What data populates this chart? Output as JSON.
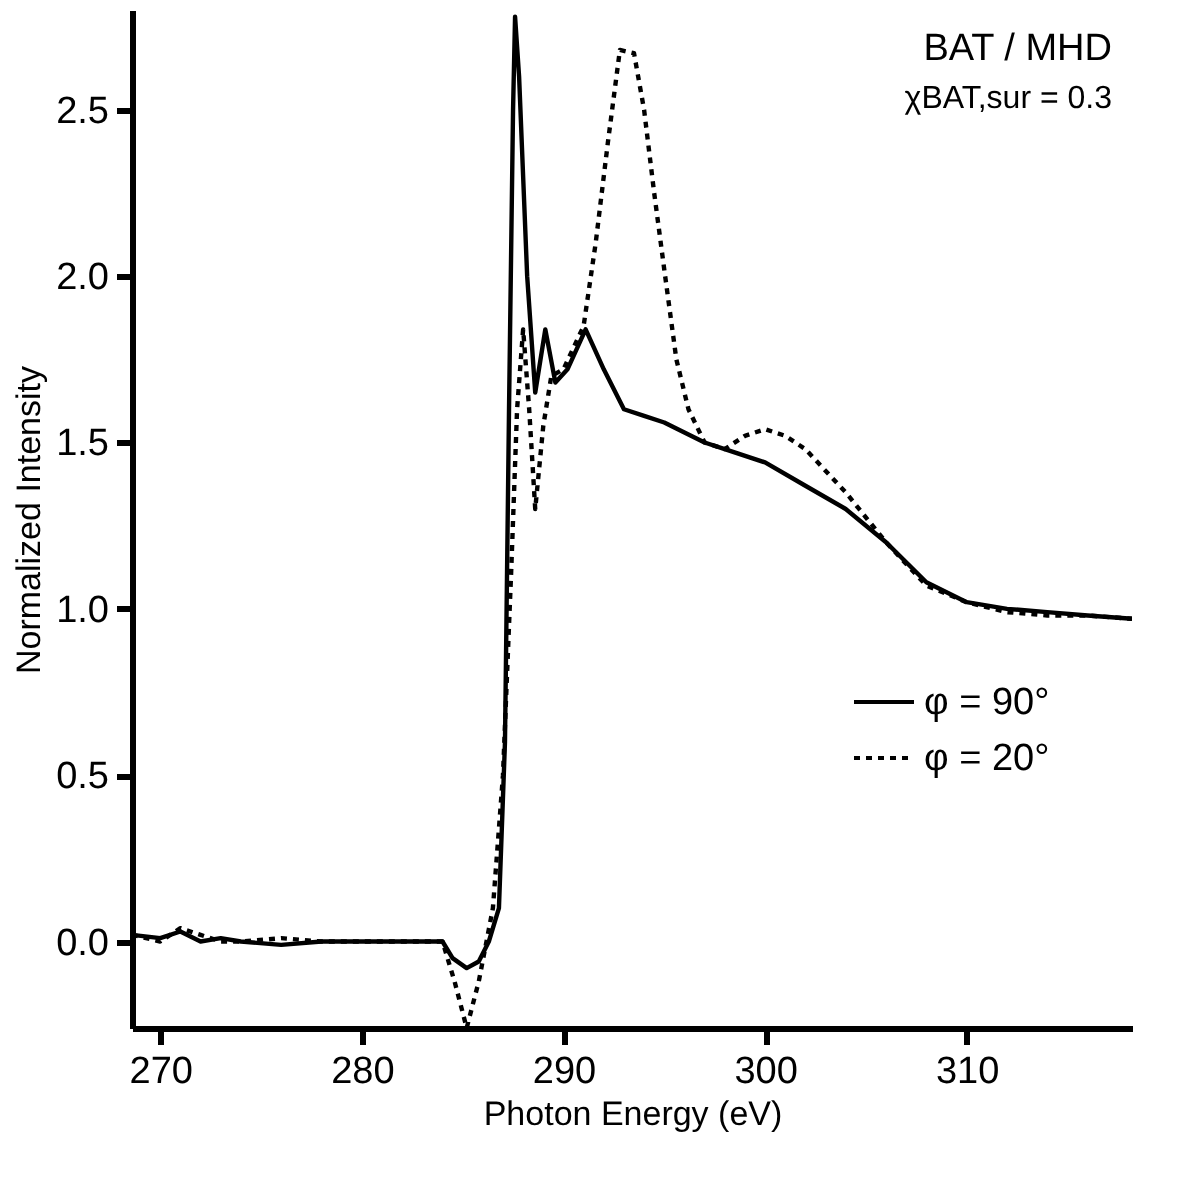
{
  "chart_data": {
    "type": "line",
    "xlabel": "Photon Energy (eV)",
    "ylabel": "Normalized Intensity",
    "annotations": [
      "BAT / MHD",
      "χBAT,sur = 0.3"
    ],
    "xlim": [
      268.6,
      318.2
    ],
    "xticks": [
      270,
      280,
      290,
      300,
      310
    ],
    "ylim": [
      -0.26,
      2.8
    ],
    "yticks": [
      {
        "value": 0,
        "label": "0.0"
      },
      {
        "value": 0.5,
        "label": "0.5"
      },
      {
        "value": 1,
        "label": "1.0"
      },
      {
        "value": 1.5,
        "label": "1.5"
      },
      {
        "value": 2,
        "label": "2.0"
      },
      {
        "value": 2.5,
        "label": "2.5"
      }
    ],
    "grid": false,
    "legend": "right",
    "marker": "none",
    "series": [
      {
        "name": "φ = 90°",
        "color": "#000000",
        "line_style": "solid",
        "x": [
          268.6,
          270,
          271,
          272,
          273,
          274,
          276,
          278,
          280,
          282,
          284,
          284.5,
          285.2,
          285.8,
          286.3,
          286.8,
          287.1,
          287.3,
          287.5,
          287.6,
          287.8,
          288.2,
          288.6,
          289.1,
          289.6,
          290.2,
          291.1,
          292,
          293,
          294,
          295,
          296,
          297,
          298,
          300,
          302,
          304,
          306,
          308,
          310,
          312,
          314,
          316,
          318.2
        ],
        "values": [
          0.02,
          0.01,
          0.03,
          0.0,
          0.01,
          0.0,
          -0.01,
          0.0,
          0.0,
          0.0,
          0.0,
          -0.05,
          -0.08,
          -0.06,
          0.0,
          0.1,
          0.6,
          1.6,
          2.5,
          2.78,
          2.6,
          2.0,
          1.65,
          1.84,
          1.68,
          1.72,
          1.84,
          1.72,
          1.6,
          1.58,
          1.56,
          1.53,
          1.5,
          1.48,
          1.44,
          1.37,
          1.3,
          1.2,
          1.08,
          1.02,
          1.0,
          0.99,
          0.98,
          0.97
        ]
      },
      {
        "name": "φ = 20°",
        "color": "#000000",
        "line_style": "dotted",
        "x": [
          268.6,
          270,
          271,
          272,
          273,
          274,
          276,
          278,
          280,
          282,
          284,
          284.6,
          285.2,
          285.8,
          286.5,
          287,
          287.4,
          287.7,
          288.0,
          288.3,
          288.6,
          289.0,
          289.4,
          290,
          291,
          291.6,
          292.2,
          292.8,
          293.5,
          294,
          294.5,
          295,
          295.6,
          296.2,
          297,
          298,
          299,
          300,
          301,
          302,
          304,
          306,
          308,
          310,
          312,
          314,
          316,
          318.2
        ],
        "values": [
          0.02,
          0.0,
          0.04,
          0.02,
          0.0,
          0.0,
          0.01,
          0.0,
          0.0,
          0.0,
          0.0,
          -0.12,
          -0.26,
          -0.12,
          0.1,
          0.5,
          1.1,
          1.6,
          1.84,
          1.6,
          1.3,
          1.55,
          1.7,
          1.72,
          1.85,
          2.1,
          2.4,
          2.68,
          2.67,
          2.5,
          2.25,
          2.02,
          1.75,
          1.6,
          1.5,
          1.48,
          1.52,
          1.54,
          1.52,
          1.48,
          1.35,
          1.2,
          1.07,
          1.02,
          0.99,
          0.98,
          0.98,
          0.97
        ]
      }
    ]
  }
}
